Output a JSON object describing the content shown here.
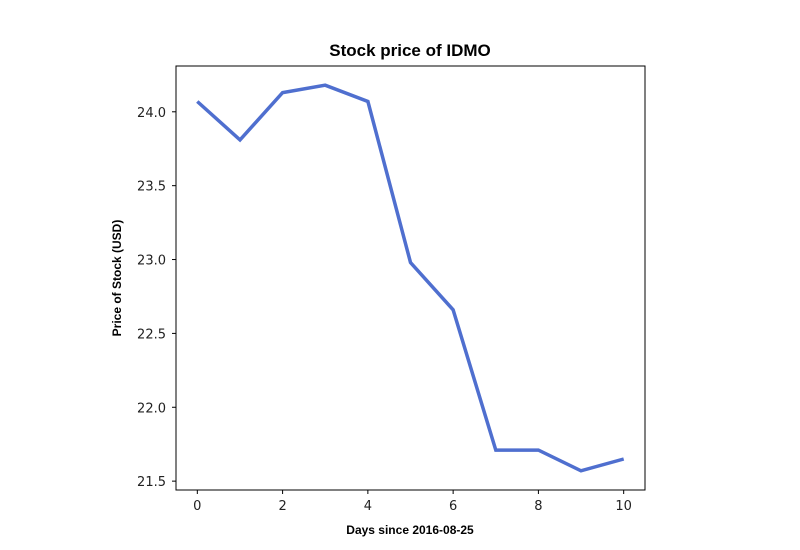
{
  "chart_data": {
    "type": "line",
    "title": "Stock price of IDMO",
    "xlabel": "Days since 2016-08-25",
    "ylabel": "Price of Stock (USD)",
    "x": [
      0,
      1,
      2,
      3,
      4,
      5,
      6,
      7,
      8,
      9,
      10
    ],
    "series": [
      {
        "values": [
          24.07,
          23.81,
          24.13,
          24.18,
          24.07,
          22.98,
          22.66,
          21.71,
          21.71,
          21.57,
          21.65
        ],
        "color": "#4f6fcf"
      }
    ],
    "xlim": [
      -0.5,
      10.5
    ],
    "ylim": [
      21.44,
      24.31
    ],
    "xticks": [
      0,
      2,
      4,
      6,
      8,
      10
    ],
    "xtick_labels": [
      "0",
      "2",
      "4",
      "6",
      "8",
      "10"
    ],
    "yticks": [
      21.5,
      22.0,
      22.5,
      23.0,
      23.5,
      24.0
    ],
    "ytick_labels": [
      "21.5",
      "22.0",
      "22.5",
      "23.0",
      "23.5",
      "24.0"
    ],
    "grid": false,
    "legend": "none"
  }
}
